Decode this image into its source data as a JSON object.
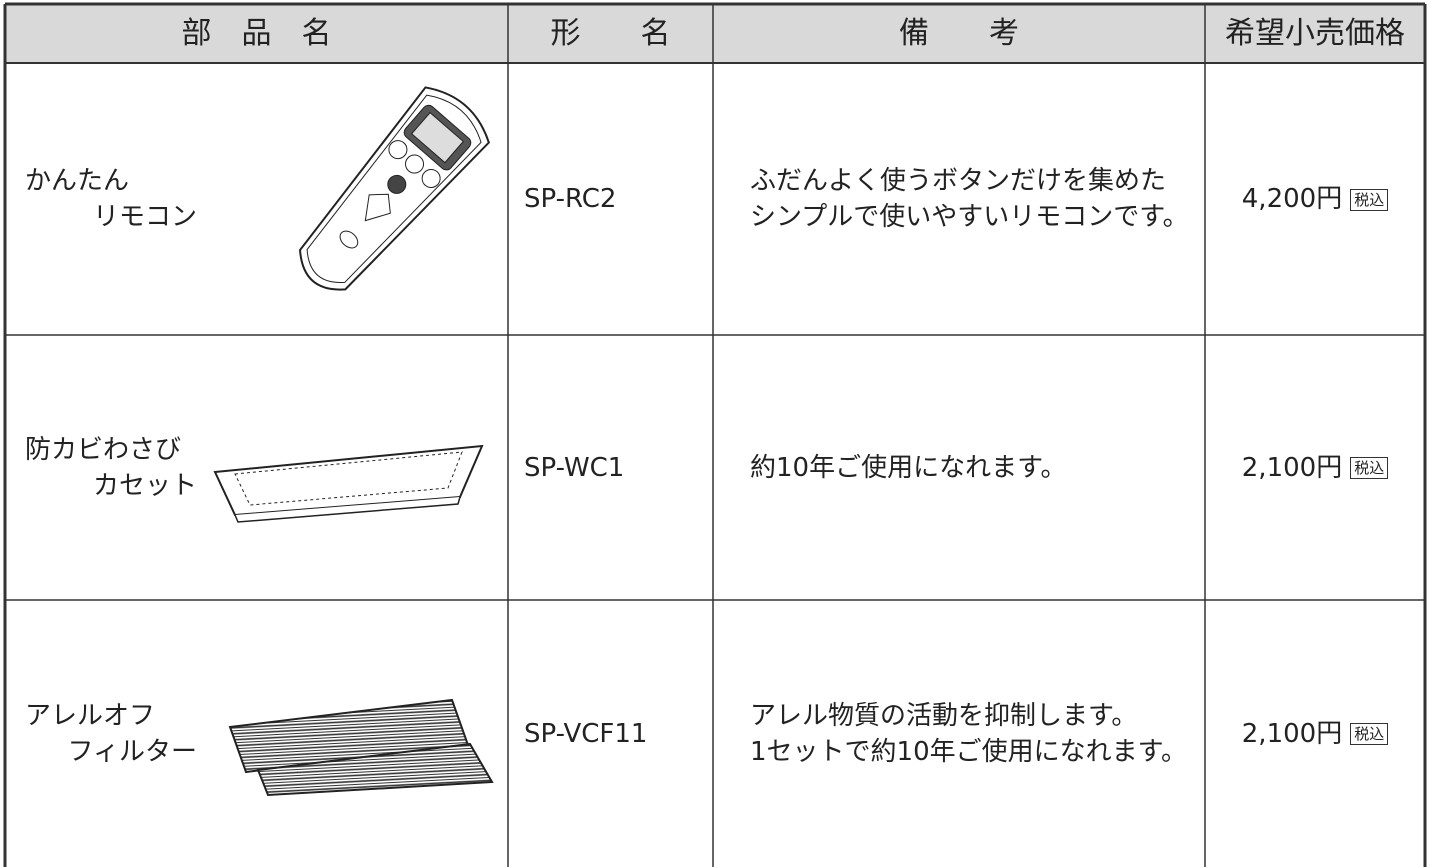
{
  "table": {
    "header": [
      "部　品　名",
      "形　　名",
      "備　　考",
      "希望小売価格"
    ],
    "rows": [
      {
        "name": [
          "かんたん",
          "リモコン"
        ],
        "model": "SP-RC2",
        "note": [
          "ふだんよく使うボタンだけを集めた",
          "シンプルで使いやすいリモコンです。"
        ],
        "price": "4,200円",
        "tax": "税込"
      },
      {
        "name": [
          "防カビわさび",
          "カセット"
        ],
        "model": "SP-WC1",
        "note": [
          "約10年ご使用になれます。"
        ],
        "price": "2,100円",
        "tax": "税込"
      },
      {
        "name": [
          "アレルオフ",
          "フィルター"
        ],
        "model": "SP-VCF11",
        "note": [
          "アレル物質の活動を抑制します。",
          "1セットで約10年ご使用になれます。"
        ],
        "price": "2,100円",
        "tax": "税込"
      }
    ]
  }
}
